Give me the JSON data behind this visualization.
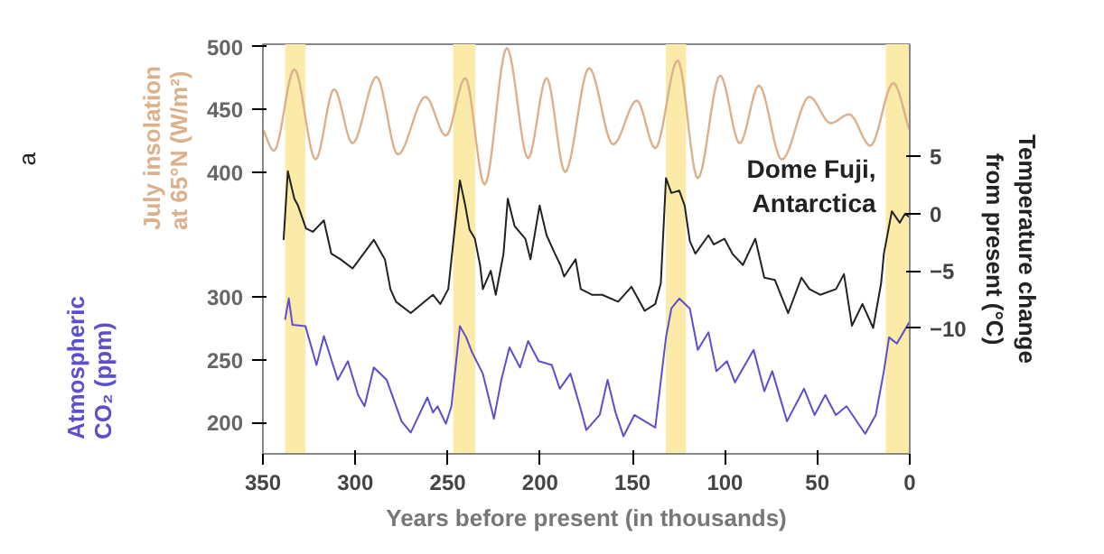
{
  "chart_data": {
    "type": "line",
    "xlabel": "Years before present (in thousands)",
    "ylabel": "July insolation\nat 65°N (W/m²)",
    "y2label": "Temperature change\nfrom present (°C)",
    "y3label": "Atmospheric\nCO₂ (ppm)",
    "xlim": [
      350,
      0
    ],
    "xticks": [
      350,
      300,
      250,
      200,
      150,
      100,
      50,
      0
    ],
    "ylim": [
      175,
      502
    ],
    "yticks": [
      400,
      450,
      500
    ],
    "y2lim": [
      -21,
      14.8
    ],
    "y2ticks": [
      -10,
      -5,
      0,
      5
    ],
    "y3lim": [
      175,
      502
    ],
    "y3ticks": [
      200,
      250,
      300
    ],
    "grid": false,
    "line_style": "solid",
    "marker": "none",
    "annotations": [
      "a"
    ],
    "bands": [
      {
        "axis": "x",
        "from": 338,
        "to": 327,
        "color": "#fbeaa8"
      },
      {
        "axis": "x",
        "from": 247,
        "to": 235,
        "color": "#fbeaa8"
      },
      {
        "axis": "x",
        "from": 132,
        "to": 121,
        "color": "#fbeaa8"
      },
      {
        "axis": "x",
        "from": 13,
        "to": 0,
        "color": "#fbeaa8"
      }
    ],
    "series": [
      {
        "color": "#ddb08c",
        "axis": "y",
        "x": [
          350,
          344,
          333,
          321.5,
          311.5,
          301.5,
          288.5,
          277,
          262,
          251,
          240.5,
          230,
          218,
          206.5,
          196.5,
          186.5,
          173.5,
          160.5,
          147.7,
          137.7,
          125.6,
          114.7,
          102.6,
          92,
          81.6,
          69.2,
          54.3,
          42.8,
          32.8,
          21.3,
          8.9,
          0.3
        ],
        "values": [
          434,
          417,
          482,
          410,
          466,
          423,
          476,
          414,
          460,
          429,
          475,
          390,
          499,
          411,
          475,
          400,
          483,
          422,
          457,
          419,
          489,
          395,
          477,
          423,
          469,
          410,
          460,
          439,
          446,
          421,
          471,
          434
        ]
      },
      {
        "name": "Dome Fuji,\nAntarctica",
        "color": "#222222",
        "axis": "y2",
        "x": [
          338.8,
          336.5,
          333,
          331,
          326.7,
          323,
          317,
          313,
          308,
          301.5,
          290,
          284,
          281,
          278,
          270,
          262.5,
          258,
          254,
          249.7,
          243.4,
          240.5,
          238.2,
          235.3,
          232.5,
          231,
          226.7,
          224,
          219.8,
          217.5,
          213.8,
          208,
          205.2,
          200.3,
          196.5,
          192,
          189,
          187,
          180.8,
          178,
          172,
          166.4,
          157.8,
          150.6,
          143.4,
          137.7,
          134.7,
          131.9,
          129,
          124.7,
          121.8,
          119,
          116,
          108.9,
          106,
          100.3,
          96,
          90.3,
          83.6,
          78.7,
          73,
          65.8,
          58.6,
          54.3,
          48.5,
          39.9,
          35.6,
          31.3,
          25.6,
          19.8,
          15.5,
          14,
          9.7,
          5.4,
          2.5,
          0.3
        ],
        "values": [
          -2.3,
          3.7,
          1.3,
          0.7,
          -1.3,
          -1.6,
          -0.6,
          -3.5,
          -4.0,
          -4.8,
          -2.3,
          -4.0,
          -6.6,
          -7.7,
          -8.7,
          -7.7,
          -7.1,
          -7.9,
          -6.6,
          2.9,
          0.7,
          -1.4,
          -2.2,
          -4.5,
          -6.6,
          -5.0,
          -7.1,
          -3.5,
          1.3,
          -1.1,
          -2.2,
          -4.0,
          0.7,
          -1.9,
          -3.5,
          -4.5,
          -5.5,
          -4.0,
          -6.6,
          -7.1,
          -7.1,
          -7.7,
          -6.4,
          -8.5,
          -7.9,
          -6.1,
          3.1,
          1.8,
          2.0,
          0.7,
          -2.4,
          -3.5,
          -1.9,
          -2.7,
          -2.2,
          -3.5,
          -4.5,
          -2.2,
          -5.6,
          -5.8,
          -8.7,
          -5.6,
          -6.6,
          -7.1,
          -6.6,
          -5.3,
          -9.8,
          -7.9,
          -10.0,
          -6.1,
          -3.5,
          0.2,
          -0.8,
          0.0,
          -0.3
        ]
      },
      {
        "color": "#5b4fd0",
        "axis": "y3",
        "x": [
          338,
          336,
          334,
          327,
          321,
          317,
          309.5,
          304,
          298.5,
          295,
          290,
          283,
          275,
          270,
          261,
          258,
          255.5,
          251,
          248,
          243.4,
          240,
          236.8,
          231,
          225,
          221,
          216.6,
          210.9,
          206.5,
          200.8,
          193.7,
          189.4,
          183.6,
          177.9,
          175,
          167.8,
          163.5,
          159.2,
          154.9,
          149,
          137.7,
          131.9,
          129,
          124.7,
          119,
          114.7,
          108.9,
          104.6,
          98.9,
          94.6,
          84.5,
          78.7,
          74.4,
          66.4,
          57.2,
          51.5,
          45.7,
          40,
          34.2,
          24.1,
          18.4,
          14,
          11.2,
          7,
          0.3
        ],
        "values": [
          282,
          299,
          278,
          277,
          246,
          269,
          234,
          249,
          222,
          213,
          244,
          234,
          201,
          192,
          220,
          208,
          213,
          199,
          213,
          277,
          268,
          256,
          239,
          203,
          234,
          260,
          244,
          265,
          249,
          246,
          227,
          239,
          210,
          194,
          206,
          234,
          208,
          189,
          206,
          196,
          268,
          291,
          299,
          291,
          258,
          272,
          241,
          249,
          232,
          258,
          225,
          241,
          201,
          227,
          206,
          222,
          206,
          213,
          191,
          206,
          241,
          268,
          263,
          280
        ]
      }
    ]
  }
}
